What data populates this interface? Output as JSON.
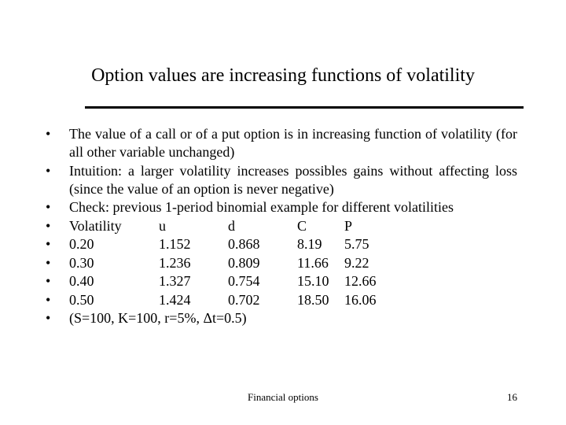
{
  "slide": {
    "title": "Option values are increasing functions of volatility",
    "bullet_symbol": "•",
    "points": [
      "The value of a call or of a put option is in increasing function of volatility (for all other variable unchanged)",
      "Intuition: a larger volatility increases possibles gains without affecting loss (since the value of an option is never negative)",
      "Check: previous 1-period binomial example for different  volatilities"
    ],
    "table": {
      "header": [
        "Volatility",
        "u",
        "d",
        "C",
        "P"
      ],
      "rows": [
        [
          "0.20",
          "1.152",
          "0.868",
          "8.19",
          "5.75"
        ],
        [
          "0.30",
          "1.236",
          "0.809",
          "11.66",
          "9.22"
        ],
        [
          "0.40",
          "1.327",
          "0.754",
          "15.10",
          "12.66"
        ],
        [
          "0.50",
          "1.424",
          "0.702",
          "18.50",
          "16.06"
        ]
      ]
    },
    "parameters": "(S=100, K=100, r=5%, Δt=0.5)"
  },
  "footer": {
    "label": "Financial options",
    "page_number": "16"
  }
}
